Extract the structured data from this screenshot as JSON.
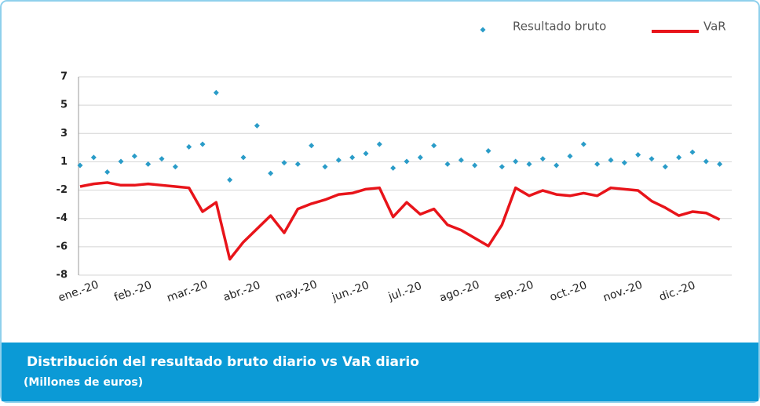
{
  "chart_data": {
    "type": "scatter_line",
    "title": "Distribución del resultado bruto diario vs VaR diario",
    "subtitle": "(Millones de euros)",
    "categories": [
      "ene.-20",
      null,
      null,
      null,
      "feb.-20",
      null,
      null,
      null,
      "mar.-20",
      null,
      null,
      null,
      "abr.-20",
      null,
      null,
      null,
      "may.-20",
      null,
      null,
      null,
      "jun.-20",
      null,
      null,
      null,
      "jul.-20",
      null,
      null,
      null,
      "ago.-20",
      null,
      null,
      null,
      "sep.-20",
      null,
      null,
      null,
      "oct.-20",
      null,
      null,
      null,
      "nov.-20",
      null,
      null,
      null,
      "dic.-20",
      null,
      null,
      null
    ],
    "series": [
      {
        "name": "Resultado bruto",
        "color": "#2a9cc8",
        "kind": "scatter",
        "values": [
          0.3,
          0.9,
          -0.2,
          0.6,
          1.0,
          0.4,
          0.8,
          0.2,
          1.7,
          1.9,
          5.8,
          -0.8,
          0.9,
          3.3,
          -0.3,
          0.5,
          0.4,
          1.8,
          0.2,
          0.7,
          0.9,
          1.2,
          1.9,
          0.1,
          0.6,
          0.9,
          1.8,
          0.4,
          0.7,
          0.3,
          1.4,
          0.2,
          0.6,
          0.4,
          0.8,
          0.3,
          1.0,
          1.9,
          0.4,
          0.7,
          0.5,
          1.1,
          0.8,
          0.2,
          0.9,
          1.3,
          0.6,
          0.4
        ]
      },
      {
        "name": "VaR",
        "color": "#e8141a",
        "kind": "line",
        "values": [
          -1.3,
          -1.1,
          -1.0,
          -1.2,
          -1.2,
          -1.1,
          -1.2,
          -1.3,
          -1.4,
          -3.2,
          -2.5,
          -6.8,
          -5.5,
          -4.5,
          -3.5,
          -4.8,
          -3.0,
          -2.6,
          -2.3,
          -1.9,
          -1.8,
          -1.5,
          -1.4,
          -3.6,
          -2.5,
          -3.4,
          -3.0,
          -4.2,
          -4.6,
          -5.2,
          -5.8,
          -4.2,
          -1.4,
          -2.0,
          -1.6,
          -1.9,
          -2.0,
          -1.8,
          -2.0,
          -1.4,
          -1.5,
          -1.6,
          -2.4,
          -2.9,
          -3.5,
          -3.2,
          -3.3,
          -3.8
        ]
      }
    ],
    "ylim": [
      -8,
      7
    ],
    "yticks": [
      7,
      {
        "value": 4.857,
        "label": "5"
      },
      {
        "value": 2.714,
        "label": "3"
      },
      {
        "value": 0.571,
        "label": "1"
      },
      {
        "value": -1.571,
        "label": "-2"
      },
      {
        "value": -3.714,
        "label": "-4"
      },
      {
        "value": -5.857,
        "label": "-6"
      },
      -8
    ],
    "grid": true,
    "legend": "top-right"
  }
}
